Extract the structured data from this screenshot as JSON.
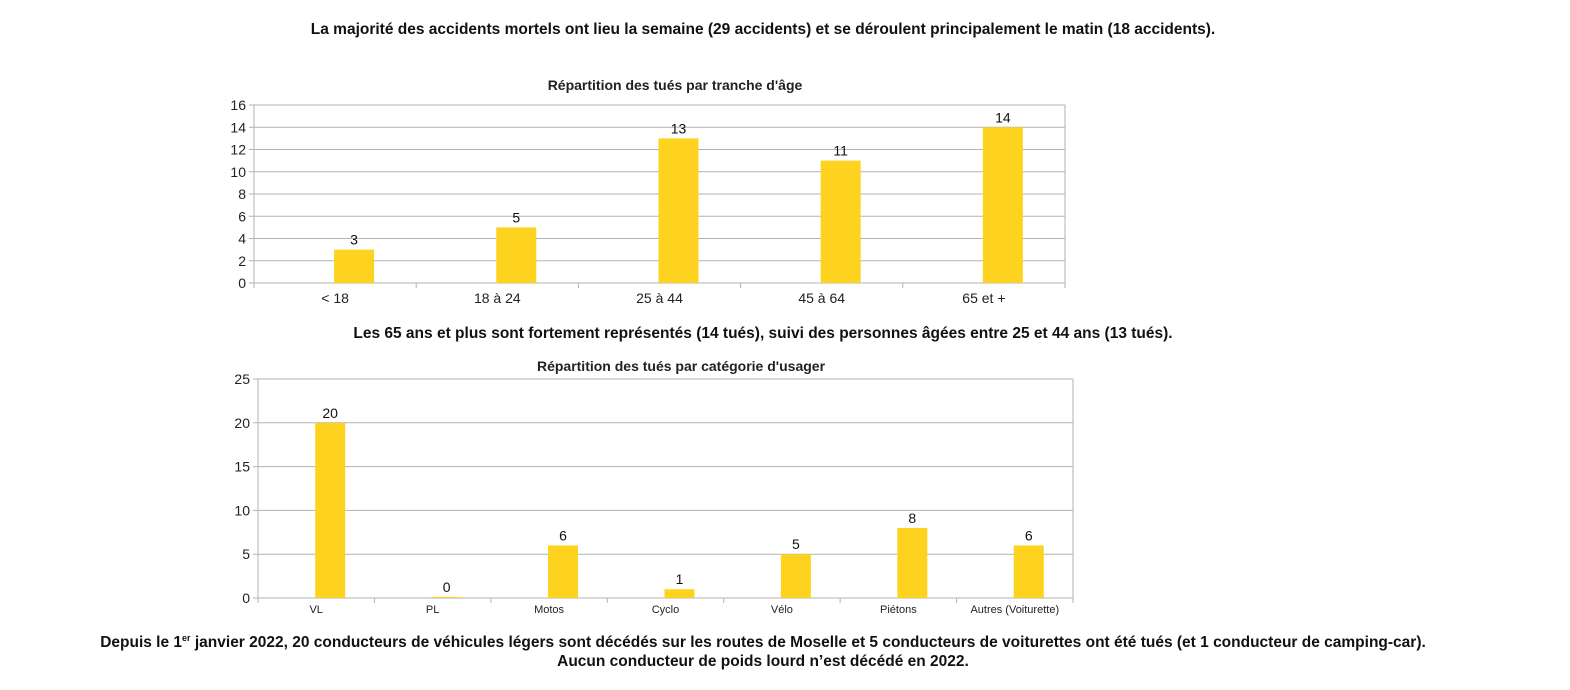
{
  "texts": {
    "intro": "La majorité des accidents mortels ont lieu la semaine (29 accidents) et se déroulent principalement le matin (18 accidents).",
    "middle": "Les 65 ans et plus sont fortement représentés (14 tués), suivi des personnes âgées entre 25 et 44 ans (13 tués).",
    "footer_part1": "Depuis le 1",
    "footer_sup": "er",
    "footer_part2": " janvier 2022, 20 conducteurs de véhicules légers sont décédés sur les routes de Moselle et 5 conducteurs de voiturettes ont été tués (et 1 conducteur de camping-car).",
    "footer_line2": "Aucun conducteur de poids lourd n’est décédé en 2022."
  },
  "colors": {
    "bar": "#FDD31F",
    "grid": "#b3b3b3"
  },
  "chart_data": [
    {
      "type": "bar",
      "title": "Répartition des tués par tranche d'âge",
      "categories": [
        "< 18",
        "18 à 24",
        "25 à 44",
        "45 à 64",
        "65 et +"
      ],
      "values": [
        3,
        5,
        13,
        11,
        14
      ],
      "ylim": [
        0,
        16
      ],
      "yticks": [
        0,
        2,
        4,
        6,
        8,
        10,
        12,
        14,
        16
      ],
      "xlabel": "",
      "ylabel": "",
      "grid": true,
      "legend": "none"
    },
    {
      "type": "bar",
      "title": "Répartition des tués par catégorie d'usager",
      "categories": [
        "VL",
        "PL",
        "Motos",
        "Cyclo",
        "Vélo",
        "Piétons",
        "Autres (Voiturette)"
      ],
      "values": [
        20,
        0,
        6,
        1,
        5,
        8,
        6
      ],
      "ylim": [
        0,
        25
      ],
      "yticks": [
        0,
        5,
        10,
        15,
        20,
        25
      ],
      "xlabel": "",
      "ylabel": "",
      "grid": true,
      "legend": "none"
    }
  ]
}
